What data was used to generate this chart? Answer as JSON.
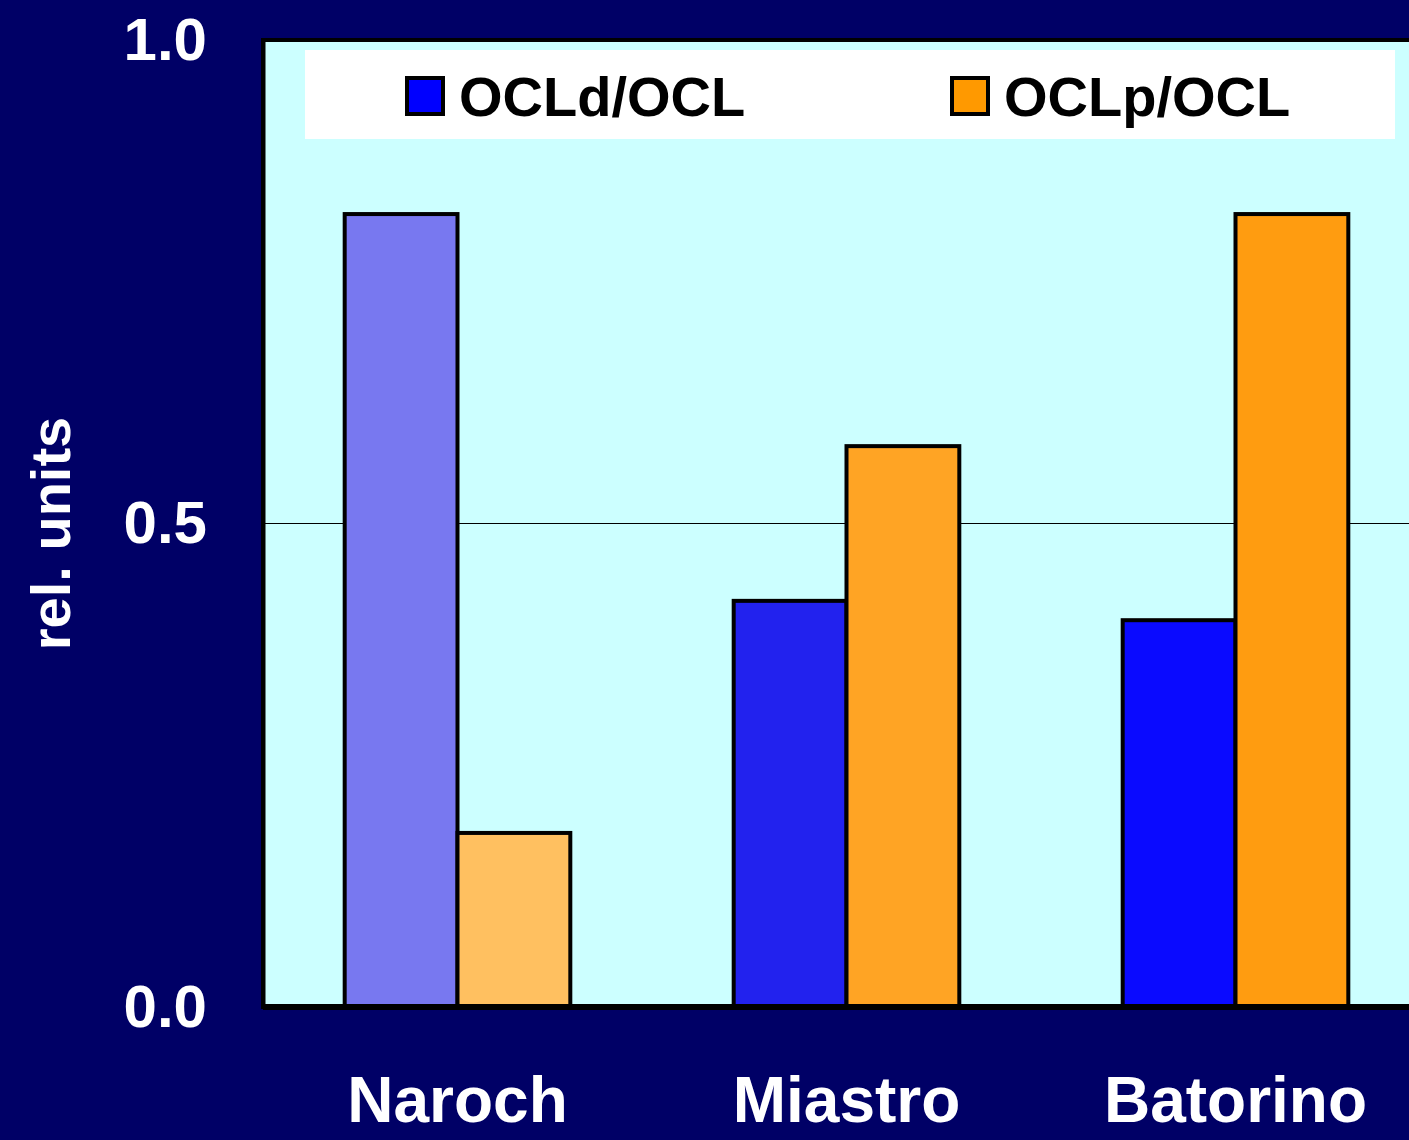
{
  "chart_data": {
    "type": "bar",
    "ylabel": "rel. units",
    "categories": [
      "Naroch",
      "Miastro",
      "Batorino"
    ],
    "series": [
      {
        "name": "OCLd/OCL",
        "color": "#0000ff",
        "colors": [
          "#7878f0",
          "#2222ee",
          "#0a0aff"
        ],
        "values": [
          0.82,
          0.42,
          0.4
        ]
      },
      {
        "name": "OCLp/OCL",
        "color": "#ff9900",
        "colors": [
          "#ffc060",
          "#ffa424",
          "#ff9c10"
        ],
        "values": [
          0.18,
          0.58,
          0.82
        ]
      }
    ],
    "ylim": [
      0,
      1
    ],
    "yticks": [
      {
        "value": 0,
        "label": "0.0"
      },
      0.5,
      {
        "value": 1,
        "label": "1.0"
      }
    ],
    "grid": "y",
    "legend": "top"
  }
}
